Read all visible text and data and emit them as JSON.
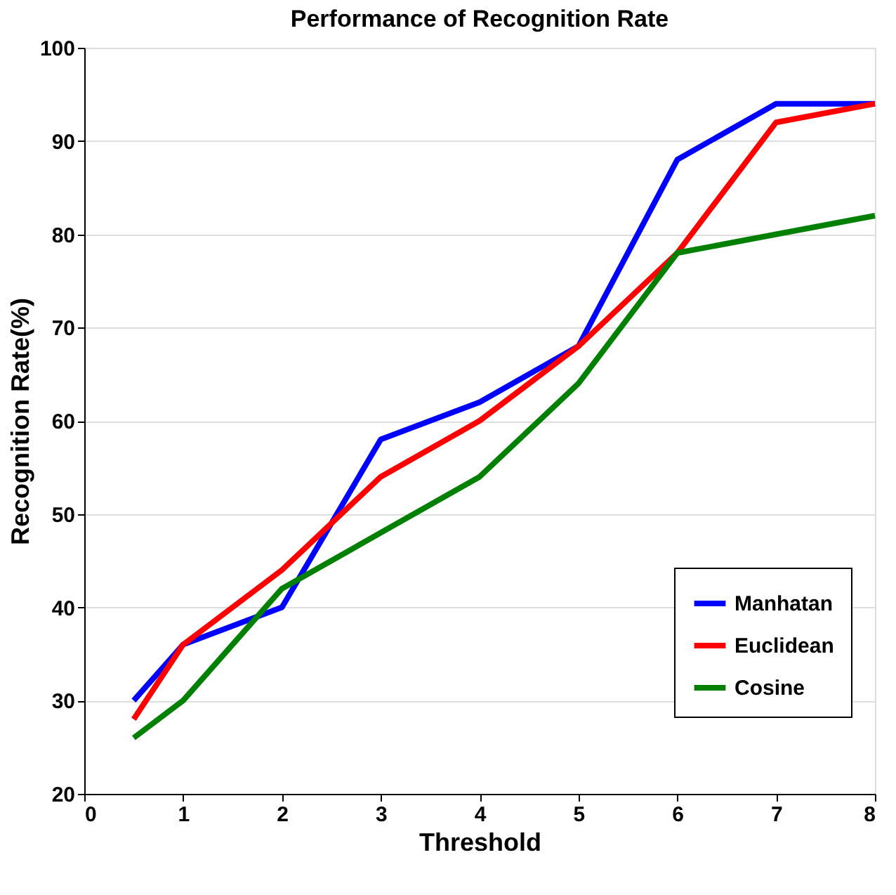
{
  "chart_data": {
    "type": "line",
    "title": "Performance of Recognition Rate",
    "xlabel": "Threshold",
    "ylabel": "Recognition Rate(%)",
    "x": [
      0.5,
      1,
      2,
      3,
      4,
      5,
      6,
      7,
      8
    ],
    "series": [
      {
        "name": "Manhatan",
        "color": "#0000ff",
        "values": [
          30,
          36,
          40,
          58,
          62,
          68,
          88,
          94,
          94
        ]
      },
      {
        "name": "Euclidean",
        "color": "#ff0000",
        "values": [
          28,
          36,
          44,
          54,
          60,
          68,
          78,
          92,
          94
        ]
      },
      {
        "name": "Cosine",
        "color": "#008000",
        "values": [
          26,
          30,
          42,
          48,
          54,
          64,
          78,
          80,
          82
        ]
      }
    ],
    "xlim": [
      0,
      8
    ],
    "xticks": [
      0,
      1,
      2,
      3,
      4,
      5,
      6,
      7,
      8
    ],
    "ylim": [
      20,
      100
    ],
    "yticks": [
      20,
      30,
      40,
      50,
      60,
      70,
      80,
      90,
      100
    ],
    "grid": "y",
    "legend": "bottom right",
    "marker": "none",
    "line_style": "solid"
  }
}
